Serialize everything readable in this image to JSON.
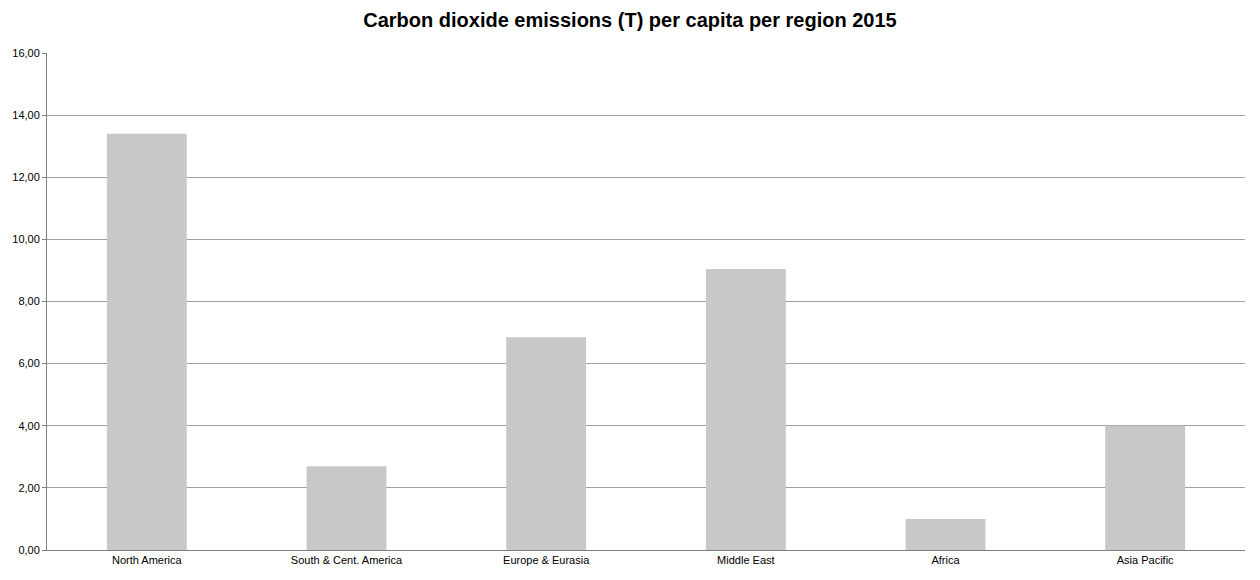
{
  "chart_data": {
    "type": "bar",
    "title": "Carbon dioxide emissions (T) per capita per region 2015",
    "categories": [
      "North America",
      "South & Cent. America",
      "Europe & Eurasia",
      "Middle East",
      "Africa",
      "Asia Pacific"
    ],
    "values": [
      13.4,
      2.7,
      6.85,
      9.05,
      1.0,
      4.0
    ],
    "color": "#c8c8c8",
    "ylim": [
      0,
      16
    ],
    "yticks": [
      {
        "value": 0,
        "label": "0,00"
      },
      {
        "value": 2,
        "label": "2,00"
      },
      {
        "value": 4,
        "label": "4,00"
      },
      {
        "value": 6,
        "label": "6,00"
      },
      {
        "value": 8,
        "label": "8,00"
      },
      {
        "value": 10,
        "label": "10,00"
      },
      {
        "value": 12,
        "label": "12,00"
      },
      {
        "value": 14,
        "label": "14,00"
      },
      {
        "value": 16,
        "label": "16,00"
      }
    ],
    "grid": true
  }
}
